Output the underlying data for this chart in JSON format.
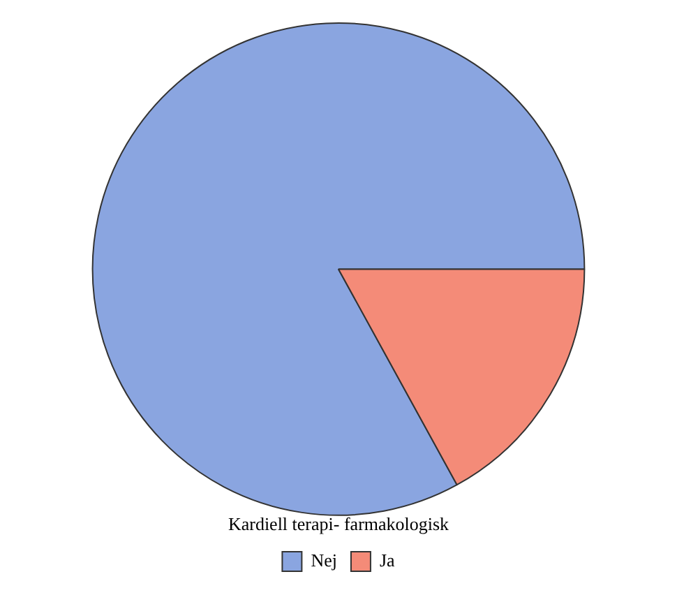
{
  "chart_data": {
    "type": "pie",
    "legend_title": "Kardiell terapi- farmakologisk",
    "categories": [
      "Nej",
      "Ja"
    ],
    "values": [
      83,
      17
    ],
    "colors": [
      "#8aa5e0",
      "#f48b78"
    ],
    "legend": "bottom"
  }
}
